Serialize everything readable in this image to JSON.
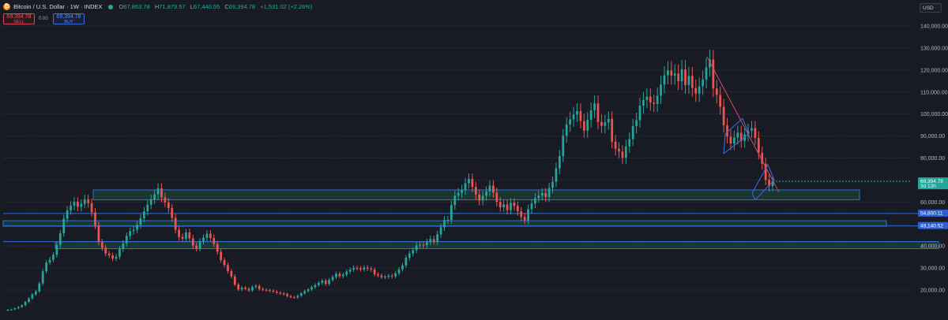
{
  "header": {
    "title": "Bitcoin / U.S. Dollar · 1W · INDEX",
    "ohlc": {
      "o_label": "O",
      "o": "67,863.78",
      "h_label": "H",
      "h": "71,879.57",
      "l_label": "L",
      "l": "67,440.55",
      "c_label": "C",
      "c": "69,394.78",
      "change": "+1,531.02 (+2.26%)"
    },
    "sell_price": "69,394.78",
    "sell_label": "SELL",
    "buy_price": "69,394.78",
    "buy_label": "BUY",
    "spread": "0.00",
    "currency": "USD"
  },
  "colors": {
    "background": "#181b24",
    "up": "#26a69a",
    "down": "#ef5350",
    "zone_fill": "#1f4a3a",
    "zone_border": "#2f6fd6",
    "trendline": "#e0475e",
    "channel": "#3a6fe0"
  },
  "chart_data": {
    "type": "candlestick",
    "title": "Bitcoin / U.S. Dollar · 1W · INDEX",
    "xlabel": "",
    "ylabel": "",
    "y_ticks": [
      20000,
      30000,
      40000,
      50000,
      60000,
      70000,
      80000,
      90000,
      100000,
      110000,
      120000,
      130000,
      140000
    ],
    "y_tick_labels": [
      "20,000.00",
      "30,000.00",
      "40,000.00",
      "50,000.00",
      "60,000.00",
      "70,000.00",
      "80,000.00",
      "90,000.00",
      "100,000.00",
      "110,000.00",
      "120,000.00",
      "130,000.00",
      "140,000.00"
    ],
    "ylim": [
      8000,
      146000
    ],
    "current_price": {
      "value": 69394.78,
      "label": "69,394.78",
      "sublabel": "3d 13h"
    },
    "horizontal_levels": [
      {
        "value": 54800.11,
        "label": "54,800.11"
      },
      {
        "value": 49140.52,
        "label": 49140.52,
        "label_text": "49,140.52"
      },
      {
        "value": 42000,
        "label": "42,000.00"
      }
    ],
    "zones": [
      {
        "from": 61000,
        "to": 65500
      },
      {
        "from": 49000,
        "to": 51500
      },
      {
        "from": 38800,
        "to": 42000
      }
    ],
    "trendline": {
      "from_price": 126000,
      "to_price": 64500
    },
    "closes": [
      11000,
      11200,
      11700,
      12300,
      13100,
      14600,
      16200,
      18000,
      19400,
      23000,
      28500,
      32500,
      33800,
      36000,
      40500,
      45800,
      52400,
      56200,
      58400,
      60100,
      57800,
      59200,
      61200,
      59500,
      55300,
      49400,
      41800,
      39200,
      36600,
      35800,
      34300,
      35200,
      38600,
      41200,
      44600,
      46800,
      47400,
      49600,
      52600,
      55800,
      58800,
      61200,
      63500,
      66200,
      62100,
      59800,
      57200,
      52800,
      47400,
      44100,
      43300,
      46200,
      43500,
      40200,
      38900,
      42100,
      43800,
      45600,
      43700,
      40900,
      37400,
      33600,
      31400,
      28600,
      26200,
      22500,
      20300,
      21100,
      20600,
      19800,
      21400,
      21900,
      20500,
      20100,
      19900,
      19700,
      19300,
      18800,
      18400,
      18200,
      17200,
      16800,
      16600,
      17400,
      18500,
      19500,
      20300,
      21300,
      22300,
      23300,
      24300,
      22800,
      24600,
      25900,
      27400,
      26300,
      27000,
      28400,
      29300,
      30100,
      29900,
      29400,
      30200,
      29700,
      29300,
      27200,
      26600,
      25900,
      26000,
      26500,
      26200,
      27600,
      29400,
      31200,
      34700,
      36600,
      38100,
      40400,
      40600,
      40400,
      41800,
      43200,
      42000,
      45300,
      48500,
      51800,
      51900,
      58600,
      62900,
      64100,
      65600,
      68600,
      70500,
      66900,
      63400,
      60700,
      62800,
      64800,
      67500,
      64300,
      60100,
      57600,
      58900,
      56300,
      59700,
      58200,
      55800,
      53200,
      51700,
      56800,
      59300,
      61800,
      62900,
      64100,
      62300,
      66400,
      69200,
      75300,
      80900,
      90100,
      95200,
      97600,
      99800,
      101300,
      96800,
      92500,
      97400,
      101700,
      104800,
      96400,
      94600,
      96200,
      97800,
      87400,
      84200,
      82900,
      80100,
      85300,
      88600,
      94500,
      97200,
      103800,
      106400,
      107900,
      105200,
      104600,
      108300,
      113400,
      117600,
      119800,
      117500,
      118400,
      114900,
      120300,
      113200,
      117300,
      111800,
      109300,
      112600,
      115700,
      121200,
      124800,
      111600,
      108700,
      103300,
      94900,
      89800,
      86600,
      89300,
      91500,
      87800,
      90700,
      92400,
      93600,
      89100,
      82300,
      77400,
      70100,
      67200,
      69400
    ]
  }
}
